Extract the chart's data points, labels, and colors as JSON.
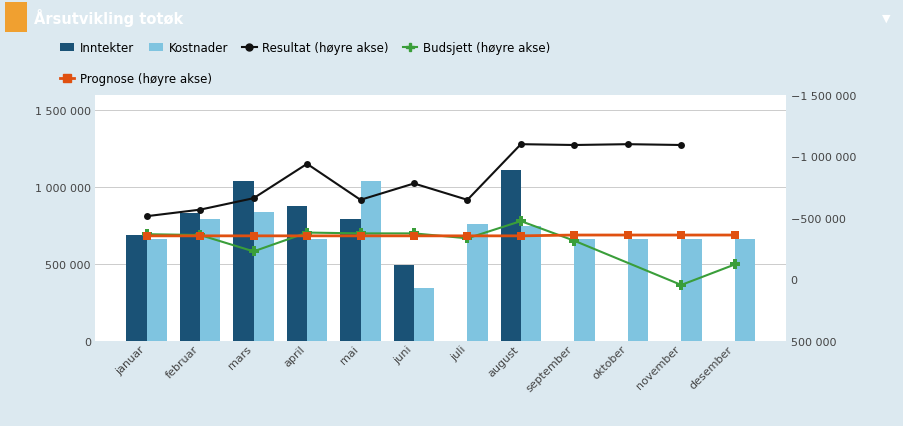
{
  "title": "Årsutvikling totøk",
  "title_bar_color": "#5b9ab5",
  "bg_color": "#dce9f0",
  "plot_bg_color": "#ffffff",
  "months": [
    "januar",
    "februar",
    "mars",
    "april",
    "mai",
    "juni",
    "juli",
    "august",
    "september",
    "oktober",
    "november",
    "desember"
  ],
  "inntekter": [
    690000,
    830000,
    1040000,
    880000,
    790000,
    490000,
    0,
    1110000,
    0,
    0,
    0,
    0
  ],
  "kostnader": [
    660000,
    790000,
    840000,
    660000,
    1040000,
    340000,
    760000,
    750000,
    660000,
    660000,
    660000,
    660000
  ],
  "resultat_left": [
    760000,
    800000,
    870000,
    1080000,
    860000,
    960000,
    860000,
    1200000,
    1195000,
    1200000,
    1195000,
    null
  ],
  "budsjett_left": [
    650000,
    645000,
    545000,
    660000,
    655000,
    655000,
    625000,
    730000,
    610000,
    null,
    340000,
    465000
  ],
  "prognose_left": [
    640000,
    640000,
    640000,
    640000,
    640000,
    640000,
    640000,
    640000,
    645000,
    645000,
    645000,
    645000
  ],
  "left_ylim": [
    0,
    1600000
  ],
  "left_yticks": [
    0,
    500000,
    1000000,
    1500000
  ],
  "right_yticks_labels": [
    "500 000",
    "0",
    "-500 000",
    "-1 000 000",
    "-1 500 000"
  ],
  "inntekter_color": "#1a5276",
  "kostnader_color": "#7fc4e0",
  "resultat_color": "#111111",
  "budsjett_color": "#3a9e3a",
  "prognose_color": "#e05010",
  "grid_color": "#cccccc",
  "text_color": "#444444",
  "axis_label_size": 8,
  "legend_fontsize": 8.5
}
